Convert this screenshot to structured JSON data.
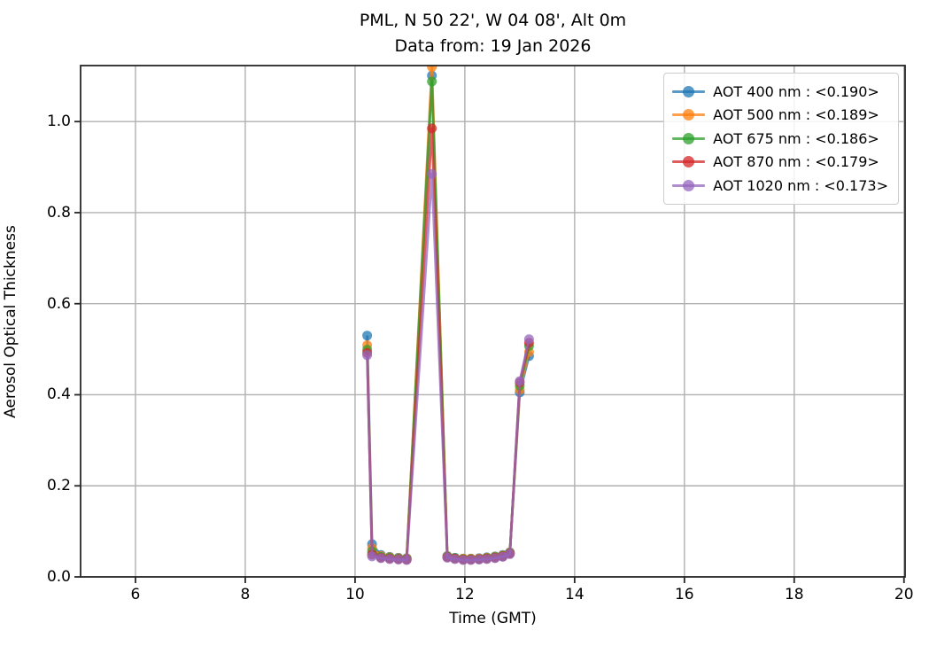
{
  "chart_data": {
    "type": "line",
    "title": "PML, N 50 22', W 04 08', Alt 0m",
    "subtitle": "Data from: 19 Jan 2026",
    "xlabel": "Time (GMT)",
    "ylabel": "Aerosol Optical Thickness",
    "xlim": [
      5.0,
      20.02
    ],
    "ylim": [
      0.0,
      1.123
    ],
    "x_ticks": [
      6,
      8,
      10,
      12,
      14,
      16,
      18,
      20
    ],
    "y_ticks": [
      0.0,
      0.2,
      0.4,
      0.6,
      0.8,
      1.0
    ],
    "grid": true,
    "grid_color": "#b0b0b0",
    "spine_color": "#262626",
    "legend_position": "upper right",
    "marker": "circle",
    "line_alpha": 0.75,
    "x": [
      10.22,
      10.31,
      10.47,
      10.63,
      10.79,
      10.94,
      11.4,
      11.68,
      11.82,
      11.97,
      12.11,
      12.26,
      12.4,
      12.55,
      12.69,
      12.82,
      13.0,
      13.17
    ],
    "series": [
      {
        "name": "AOT 400 nm",
        "label": "AOT 400 nm : <0.190>",
        "mean": 0.19,
        "color": "#1f77b4",
        "values": [
          0.53,
          0.072,
          0.048,
          0.044,
          0.042,
          0.041,
          1.101,
          0.046,
          0.042,
          0.04,
          0.04,
          0.041,
          0.043,
          0.045,
          0.048,
          0.054,
          0.405,
          0.485
        ]
      },
      {
        "name": "AOT 500 nm",
        "label": "AOT 500 nm : <0.189>",
        "mean": 0.189,
        "color": "#ff7f0e",
        "values": [
          0.509,
          0.063,
          0.046,
          0.043,
          0.041,
          0.04,
          1.12,
          0.045,
          0.041,
          0.04,
          0.04,
          0.04,
          0.042,
          0.044,
          0.047,
          0.053,
          0.411,
          0.494
        ]
      },
      {
        "name": "AOT 675 nm",
        "label": "AOT 675 nm : <0.186>",
        "mean": 0.186,
        "color": "#2ca02c",
        "values": [
          0.499,
          0.056,
          0.044,
          0.042,
          0.04,
          0.039,
          1.088,
          0.044,
          0.041,
          0.039,
          0.039,
          0.039,
          0.041,
          0.043,
          0.046,
          0.052,
          0.42,
          0.507
        ]
      },
      {
        "name": "AOT 870 nm",
        "label": "AOT 870 nm : <0.179>",
        "mean": 0.179,
        "color": "#d62728",
        "values": [
          0.492,
          0.049,
          0.042,
          0.04,
          0.039,
          0.038,
          0.985,
          0.043,
          0.04,
          0.038,
          0.038,
          0.039,
          0.04,
          0.042,
          0.045,
          0.051,
          0.427,
          0.514
        ]
      },
      {
        "name": "AOT 1020 nm",
        "label": "AOT 1020 nm : <0.173>",
        "mean": 0.173,
        "color": "#9467bd",
        "values": [
          0.487,
          0.045,
          0.041,
          0.039,
          0.038,
          0.037,
          0.885,
          0.042,
          0.039,
          0.037,
          0.037,
          0.038,
          0.039,
          0.041,
          0.044,
          0.05,
          0.43,
          0.522
        ]
      }
    ]
  }
}
